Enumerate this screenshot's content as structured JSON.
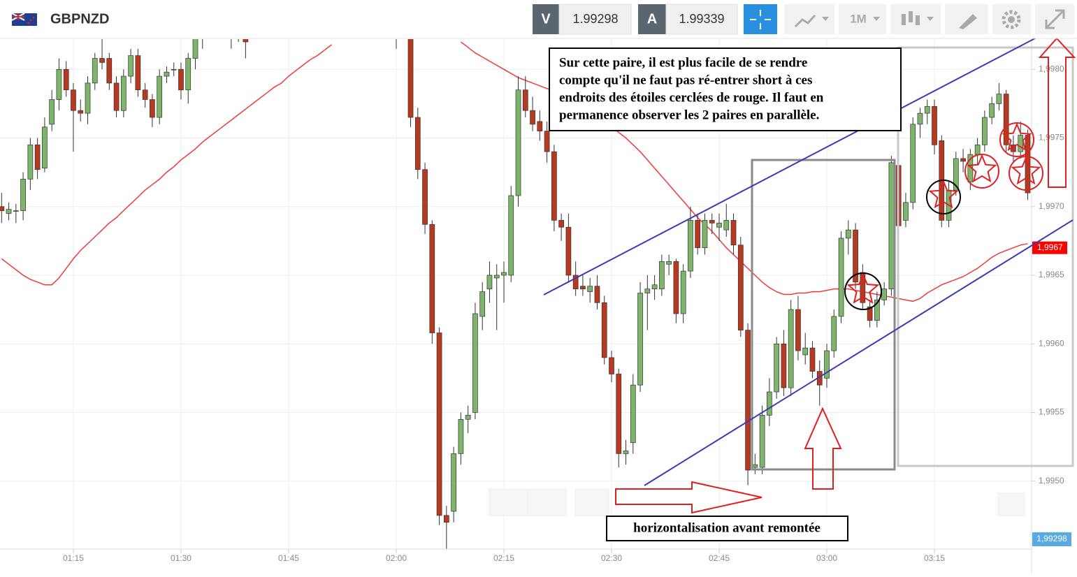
{
  "header": {
    "symbol": "GBPNZD",
    "bid_label": "V",
    "bid": "1.99298",
    "ask_label": "A",
    "ask": "1.99339",
    "timeframe": "1M",
    "bid_tag": "1,99298"
  },
  "annotations": {
    "note_lines": [
      "Sur cette paire, il est plus facile de se rendre",
      "compte qu'il ne faut pas ré-entrer short à ces",
      "endroits des étoiles cerclées de rouge. Il faut en",
      "permanence  observer  les 2  paires en parallèle."
    ],
    "caption": "horizontalisation avant remontée"
  },
  "chart_data": {
    "type": "candlestick",
    "categories": [
      null,
      null,
      null,
      null,
      null,
      null,
      null,
      null,
      null,
      null,
      "01:15",
      null,
      null,
      null,
      null,
      null,
      null,
      null,
      null,
      null,
      null,
      null,
      null,
      null,
      null,
      "01:30",
      null,
      null,
      null,
      null,
      null,
      null,
      null,
      null,
      null,
      null,
      null,
      null,
      null,
      null,
      "01:45",
      null,
      null,
      null,
      null,
      null,
      null,
      null,
      null,
      null,
      null,
      null,
      null,
      null,
      null,
      "02:00",
      null,
      null,
      null,
      null,
      null,
      null,
      null,
      null,
      null,
      null,
      null,
      null,
      null,
      null,
      "02:15",
      null,
      null,
      null,
      null,
      null,
      null,
      null,
      null,
      null,
      null,
      null,
      null,
      null,
      null,
      "02:30",
      null,
      null,
      null,
      null,
      null,
      null,
      null,
      null,
      null,
      null,
      null,
      null,
      null,
      null,
      "02:45",
      null,
      null,
      null,
      null,
      null,
      null,
      null,
      null,
      null,
      null,
      null,
      null,
      null,
      null,
      "03:00",
      null,
      null,
      null,
      null,
      null,
      null,
      null,
      null,
      null,
      null,
      null,
      null,
      null,
      null,
      "03:15",
      null,
      null,
      null,
      null,
      null,
      null,
      null,
      null,
      null,
      null,
      null,
      null,
      null
    ],
    "ohlc": [
      [
        1.997,
        1.9971,
        1.99688,
        1.99697
      ],
      [
        1.99695,
        1.99703,
        1.9969,
        1.99698
      ],
      [
        1.99697,
        1.99702,
        1.99688,
        1.99697
      ],
      [
        1.99697,
        1.99725,
        1.9969,
        1.9972
      ],
      [
        1.9972,
        1.9975,
        1.99712,
        1.99745
      ],
      [
        1.99745,
        1.9975,
        1.9972,
        1.99727
      ],
      [
        1.99728,
        1.99765,
        1.99725,
        1.99758
      ],
      [
        1.9976,
        1.99785,
        1.99755,
        1.99778
      ],
      [
        1.99778,
        1.99808,
        1.9977,
        1.998
      ],
      [
        1.998,
        1.99806,
        1.9978,
        1.99785
      ],
      [
        1.99785,
        1.9979,
        1.9974,
        1.9977
      ],
      [
        1.9977,
        1.99778,
        1.99762,
        1.99768
      ],
      [
        1.99768,
        1.99795,
        1.9976,
        1.9979
      ],
      [
        1.9979,
        1.99812,
        1.99785,
        1.99808
      ],
      [
        1.99808,
        1.99825,
        1.998,
        1.99805
      ],
      [
        1.99808,
        1.99812,
        1.99785,
        1.9979
      ],
      [
        1.9979,
        1.99795,
        1.99765,
        1.9977
      ],
      [
        1.9977,
        1.998,
        1.99765,
        1.99795
      ],
      [
        1.99795,
        1.99815,
        1.9979,
        1.9981
      ],
      [
        1.9981,
        1.99815,
        1.9978,
        1.99785
      ],
      [
        1.99785,
        1.9979,
        1.99772,
        1.99778
      ],
      [
        1.99778,
        1.99782,
        1.99758,
        1.99765
      ],
      [
        1.99765,
        1.998,
        1.9976,
        1.99795
      ],
      [
        1.99795,
        1.99802,
        1.9979,
        1.99798
      ],
      [
        1.998,
        1.99805,
        1.99795,
        1.998
      ],
      [
        1.998,
        1.99805,
        1.99778,
        1.99785
      ],
      [
        1.99785,
        1.99812,
        1.99775,
        1.99808
      ],
      [
        1.99808,
        1.99845,
        1.998,
        1.99835
      ],
      [
        1.9984,
        1.9985,
        1.99815,
        1.9984
      ],
      null,
      null,
      null,
      [
        1.9983,
        1.99845,
        1.99815,
        1.9983
      ],
      [
        1.9983,
        1.9984,
        1.9982,
        1.99828
      ],
      [
        1.99825,
        1.99832,
        1.99808,
        1.9982
      ],
      null,
      null,
      null,
      null,
      null,
      null,
      null,
      null,
      null,
      null,
      null,
      null,
      null,
      null,
      null,
      null,
      null,
      null,
      null,
      null,
      [
        1.9984,
        1.9985,
        1.99815,
        1.99825
      ],
      null,
      [
        1.9983,
        1.9984,
        1.99758,
        1.99765
      ],
      [
        1.99765,
        1.99772,
        1.9972,
        1.99727
      ],
      [
        1.99727,
        1.99732,
        1.9968,
        1.99687
      ],
      [
        1.99687,
        1.9969,
        1.996,
        1.99608
      ],
      [
        1.99608,
        1.99612,
        1.99468,
        1.99475
      ],
      [
        1.99475,
        1.99482,
        1.99445,
        1.9947
      ],
      [
        1.99478,
        1.99525,
        1.9947,
        1.9952
      ],
      [
        1.9952,
        1.9955,
        1.99512,
        1.99545
      ],
      [
        1.99545,
        1.99555,
        1.99535,
        1.99548
      ],
      [
        1.9955,
        1.9963,
        1.99545,
        1.99622
      ],
      [
        1.9962,
        1.99645,
        1.9961,
        1.99638
      ],
      [
        1.9964,
        1.9966,
        1.9963,
        1.9965
      ],
      [
        1.99648,
        1.99658,
        1.9961,
        1.9965
      ],
      [
        1.9965,
        1.9966,
        1.9963,
        1.99652
      ],
      [
        1.9965,
        1.99715,
        1.99645,
        1.99708
      ],
      [
        1.99708,
        1.99795,
        1.997,
        1.99785
      ],
      [
        1.99785,
        1.99795,
        1.99765,
        1.9977
      ],
      [
        1.9977,
        1.9978,
        1.99755,
        1.9976
      ],
      [
        1.99762,
        1.9977,
        1.99748,
        1.99755
      ],
      [
        1.99755,
        1.99762,
        1.99732,
        1.9974
      ],
      [
        1.9974,
        1.99745,
        1.99682,
        1.9969
      ],
      [
        1.9969,
        1.99695,
        1.99675,
        1.99685
      ],
      [
        1.99685,
        1.99695,
        1.99645,
        1.9965
      ],
      [
        1.9965,
        1.9966,
        1.99635,
        1.9964
      ],
      [
        1.99642,
        1.9965,
        1.99635,
        1.9964
      ],
      [
        1.99638,
        1.99648,
        1.9963,
        1.99642
      ],
      [
        1.99642,
        1.9965,
        1.99625,
        1.9963
      ],
      [
        1.9963,
        1.99635,
        1.99585,
        1.9959
      ],
      [
        1.9959,
        1.99595,
        1.99572,
        1.99578
      ],
      [
        1.99578,
        1.99582,
        1.9951,
        1.9952
      ],
      [
        1.9952,
        1.9953,
        1.99512,
        1.99522
      ],
      [
        1.99528,
        1.99578,
        1.9952,
        1.9957
      ],
      [
        1.9957,
        1.99645,
        1.99565,
        1.99637
      ],
      [
        1.99637,
        1.9965,
        1.9961,
        1.9964
      ],
      [
        1.9964,
        1.9965,
        1.99632,
        1.99643
      ],
      [
        1.9964,
        1.99665,
        1.99635,
        1.9966
      ],
      [
        1.99658,
        1.99665,
        1.9965,
        1.9966
      ],
      [
        1.9966,
        1.99662,
        1.99615,
        1.99622
      ],
      [
        1.99622,
        1.99658,
        1.99615,
        1.99653
      ],
      [
        1.99653,
        1.997,
        1.99648,
        1.9969
      ],
      [
        1.9969,
        1.99695,
        1.99665,
        1.9967
      ],
      [
        1.9967,
        1.99695,
        1.99665,
        1.9969
      ],
      [
        1.9969,
        1.99695,
        1.9968,
        1.99688
      ],
      [
        1.99685,
        1.99695,
        1.99675,
        1.99688
      ],
      [
        1.99683,
        1.99702,
        1.99678,
        1.9969
      ],
      [
        1.9969,
        1.99695,
        1.99665,
        1.99672
      ],
      [
        1.99672,
        1.99678,
        1.99605,
        1.9961
      ],
      [
        1.9961,
        1.99615,
        1.99497,
        1.99508
      ],
      [
        1.9951,
        1.9952,
        1.99505,
        1.99512
      ],
      [
        1.9951,
        1.99555,
        1.99505,
        1.99548
      ],
      [
        1.99548,
        1.99575,
        1.9954,
        1.99565
      ],
      [
        1.99565,
        1.99605,
        1.9956,
        1.996
      ],
      [
        1.996,
        1.9961,
        1.99562,
        1.99568
      ],
      [
        1.99568,
        1.99632,
        1.99562,
        1.99625
      ],
      [
        1.99625,
        1.99635,
        1.99588,
        1.99595
      ],
      [
        1.99592,
        1.99608,
        1.99585,
        1.99597
      ],
      [
        1.99597,
        1.99602,
        1.99575,
        1.9958
      ],
      [
        1.9958,
        1.99588,
        1.99555,
        1.9957
      ],
      [
        1.99575,
        1.996,
        1.99568,
        1.99595
      ],
      [
        1.99595,
        1.99625,
        1.9959,
        1.9962
      ],
      [
        1.9962,
        1.99682,
        1.99615,
        1.99677
      ],
      [
        1.99677,
        1.9969,
        1.99665,
        1.99683
      ],
      [
        1.99683,
        1.99688,
        1.9964,
        1.99645
      ],
      [
        1.99652,
        1.99658,
        1.99625,
        1.9963
      ],
      [
        1.99627,
        1.99632,
        1.99612,
        1.99617
      ],
      [
        1.99617,
        1.99638,
        1.99612,
        1.99632
      ],
      [
        1.99632,
        1.99645,
        1.99628,
        1.9964
      ],
      [
        1.9964,
        1.99737,
        1.99635,
        1.99732
      ],
      [
        1.9973,
        1.99735,
        1.9968,
        1.99686
      ],
      [
        1.9969,
        1.9971,
        1.99685,
        1.99703
      ],
      [
        1.99703,
        1.99765,
        1.99698,
        1.9976
      ],
      [
        1.9976,
        1.99772,
        1.9975,
        1.99768
      ],
      [
        1.99768,
        1.99778,
        1.9976,
        1.99773
      ],
      [
        1.99773,
        1.99778,
        1.99738,
        1.99745
      ],
      [
        1.99748,
        1.99752,
        1.99685,
        1.9969
      ],
      [
        1.9969,
        1.99718,
        1.99685,
        1.99712
      ],
      [
        1.99712,
        1.9974,
        1.99708,
        1.99735
      ],
      [
        1.99735,
        1.99742,
        1.99725,
        1.99733
      ],
      [
        1.99718,
        1.99742,
        1.99712,
        1.99738
      ],
      [
        1.99738,
        1.9975,
        1.9973,
        1.99745
      ],
      [
        1.99745,
        1.9977,
        1.9974,
        1.99765
      ],
      [
        1.99765,
        1.9978,
        1.9976,
        1.99775
      ],
      [
        1.99775,
        1.9979,
        1.9977,
        1.99782
      ],
      [
        1.99782,
        1.99785,
        1.9974,
        1.99745
      ],
      [
        1.99745,
        1.99752,
        1.99732,
        1.9974
      ],
      [
        1.9974,
        1.99762,
        1.99735,
        1.99752
      ],
      [
        1.99752,
        1.99756,
        1.99705,
        1.9971
      ]
    ],
    "up_color": "#7db56a",
    "down_color": "#b8391f",
    "moving_average": {
      "color": "#f03a3a",
      "values": [
        1.99662,
        1.99658,
        1.99654,
        1.9965,
        1.99647,
        1.99645,
        1.99643,
        1.99643,
        1.99648,
        1.99655,
        1.99662,
        1.99668,
        1.99673,
        1.99678,
        1.99683,
        1.99688,
        1.99692,
        1.99697,
        1.99702,
        1.99707,
        1.99712,
        1.99716,
        1.9972,
        1.99725,
        1.99729,
        1.99734,
        1.99738,
        1.99742,
        1.99747,
        1.99751,
        1.99755,
        1.99759,
        1.99763,
        1.99767,
        1.99771,
        1.99775,
        1.99779,
        1.99783,
        1.99787,
        1.9979,
        1.99795,
        1.99799,
        1.99803,
        1.99807,
        1.9981,
        1.99814,
        1.99818,
        null,
        null,
        null,
        null,
        null,
        null,
        null,
        null,
        null,
        null,
        null,
        null,
        null,
        null,
        null,
        null,
        null,
        1.9982,
        1.99816,
        1.99812,
        1.99809,
        1.99806,
        1.99803,
        1.998,
        1.99797,
        1.99794,
        1.99792,
        1.9979,
        1.99788,
        1.99786,
        1.99784,
        1.99781,
        1.99778,
        1.99775,
        1.99772,
        1.99769,
        1.99765,
        1.99762,
        1.99758,
        1.99754,
        1.9975,
        1.99745,
        1.9974,
        1.99734,
        1.99728,
        1.99722,
        1.99716,
        1.9971,
        1.99704,
        1.99698,
        1.99692,
        1.99687,
        1.99682,
        1.99676,
        1.9967,
        1.99665,
        1.9966,
        1.99655,
        1.9965,
        1.99645,
        1.99641,
        1.99638,
        1.99636,
        1.99636,
        1.99637,
        1.99637,
        1.99638,
        1.99638,
        1.99639,
        1.9964,
        1.9964,
        1.9964,
        1.99639,
        1.99638,
        1.99637,
        1.99636,
        1.99635,
        1.99634,
        1.99633,
        1.99632,
        1.99631,
        1.99633,
        1.99637,
        1.9964,
        1.99643,
        1.99645,
        1.99647,
        1.99649,
        1.99652,
        1.99655,
        1.99659,
        1.99663,
        1.99666,
        1.99668,
        1.9967,
        1.99672,
        1.99673
      ]
    },
    "ylim": [
      1.99451,
      1.99821
    ],
    "yticks": [
      {
        "value": 1.995,
        "label": "1,9950"
      },
      {
        "value": 1.9955,
        "label": "1,9955"
      },
      {
        "value": 1.996,
        "label": "1,9960"
      },
      {
        "value": 1.9965,
        "label": "1,9965"
      },
      {
        "value": 1.997,
        "label": "1,9970"
      },
      {
        "value": 1.9975,
        "label": "1,9975"
      },
      {
        "value": 1.998,
        "label": "1,9980"
      }
    ],
    "price_tag": {
      "value": 1.9967,
      "label": "1,9967",
      "color": "#ff0000"
    },
    "grid": true
  }
}
